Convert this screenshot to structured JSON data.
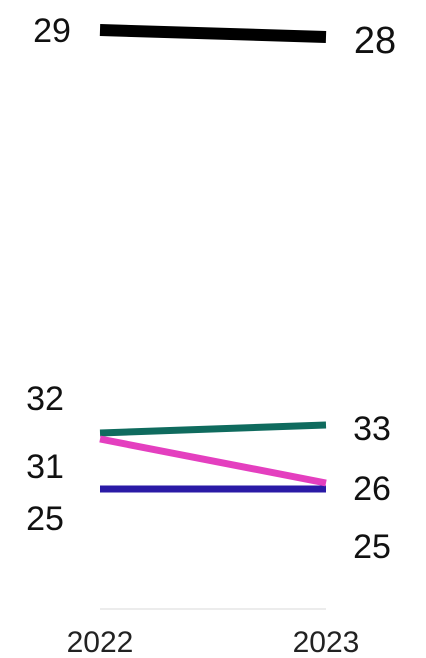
{
  "chart_data": {
    "type": "line",
    "x": [
      "2022",
      "2023"
    ],
    "series": [
      {
        "values": [
          29,
          28
        ],
        "color": "#000000"
      },
      {
        "values": [
          32,
          33
        ],
        "color": "#0f6b5e"
      },
      {
        "values": [
          31,
          26
        ],
        "color": "#e43fbf"
      },
      {
        "values": [
          25,
          25
        ],
        "color": "#2a1aa6"
      }
    ],
    "xlabel": "",
    "ylabel": "",
    "grid": false,
    "legend": "none"
  }
}
